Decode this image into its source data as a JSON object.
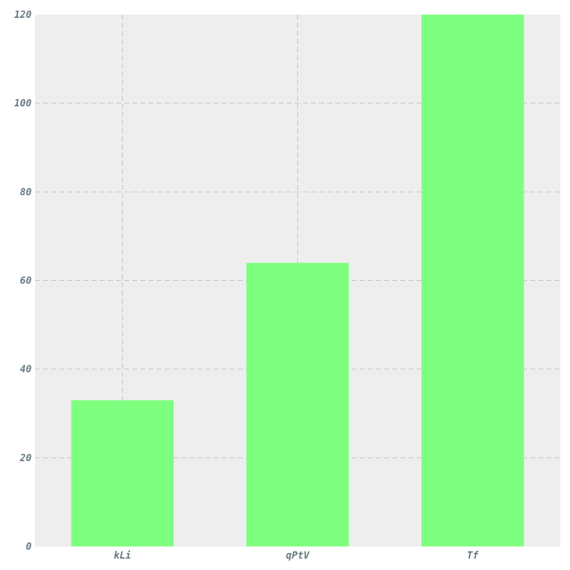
{
  "chart_data": {
    "type": "bar",
    "title": "",
    "xlabel": "",
    "ylabel": "",
    "categories": [
      "kLi",
      "qPtV",
      "Tf"
    ],
    "values": [
      33,
      64,
      120
    ],
    "ylim": [
      0,
      120
    ],
    "yticks": [
      0,
      20,
      40,
      60,
      80,
      100,
      120
    ],
    "ytick_labels": [
      "0",
      "20",
      "40",
      "60",
      "80",
      "100",
      "120"
    ],
    "grid": true,
    "legend": "none",
    "colors": {
      "bar": "#7fff7f",
      "plot_background": "#eeeeee",
      "grid": "#c8c8c8",
      "tick_label": "#6a7a82"
    }
  }
}
